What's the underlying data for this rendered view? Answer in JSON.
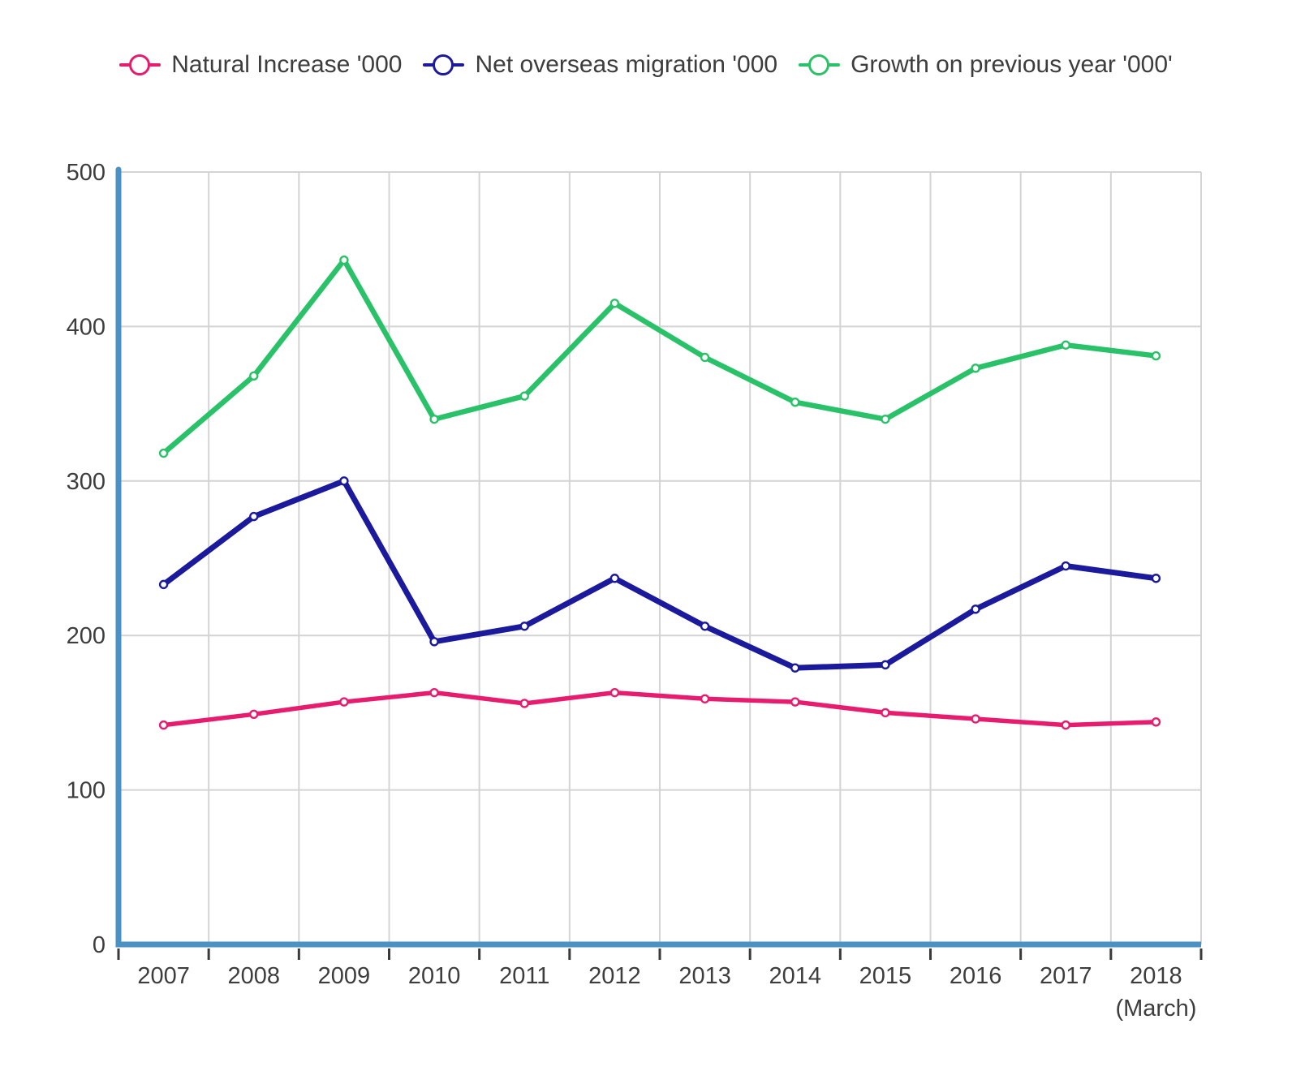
{
  "legend": {
    "items": [
      {
        "label": "Natural Increase '000",
        "color": "#e81c6e"
      },
      {
        "label": "Net overseas migration '000",
        "color": "#1b1a9c"
      },
      {
        "label": "Growth on previous year '000'",
        "color": "#29c268"
      }
    ]
  },
  "axes": {
    "y_ticks": [
      "0",
      "100",
      "200",
      "300",
      "400",
      "500"
    ],
    "x_second_line": "(March)",
    "axis_color": "#4a92c3",
    "grid_color": "#d4d4d4",
    "tick_color": "#3a3a3a",
    "label_color": "#3d3d3d"
  },
  "chart_data": {
    "type": "line",
    "title": "",
    "xlabel": "",
    "ylabel": "",
    "categories": [
      "2007",
      "2008",
      "2009",
      "2010",
      "2011",
      "2012",
      "2013",
      "2014",
      "2015",
      "2016",
      "2017",
      "2018"
    ],
    "x_last_label_note": "(March)",
    "series": [
      {
        "id": "natural-increase",
        "name": "Natural Increase '000",
        "color": "#e81c6e",
        "values": [
          142,
          149,
          157,
          163,
          156,
          163,
          159,
          157,
          150,
          146,
          142,
          144
        ]
      },
      {
        "id": "net-overseas-migration",
        "name": "Net overseas migration '000",
        "color": "#1b1a9c",
        "values": [
          233,
          277,
          300,
          196,
          206,
          237,
          206,
          179,
          181,
          217,
          245,
          237
        ]
      },
      {
        "id": "growth-on-previous-year",
        "name": "Growth on previous year '000'",
        "color": "#29c268",
        "values": [
          318,
          368,
          443,
          340,
          355,
          415,
          380,
          351,
          340,
          373,
          388,
          381
        ]
      }
    ],
    "ylim": [
      0,
      500
    ],
    "y_tick_step": 100,
    "grid": true,
    "legend_position": "top",
    "markers": "open-circle"
  }
}
